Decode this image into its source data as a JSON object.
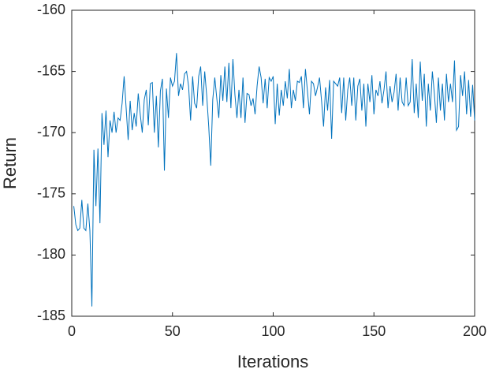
{
  "chart_data": {
    "type": "line",
    "xlabel": "Iterations",
    "ylabel": "Return",
    "xlim": [
      0,
      200
    ],
    "xticks": [
      0,
      50,
      100,
      150,
      200
    ],
    "ylim": [
      -185,
      -160
    ],
    "yticks": [
      -185,
      -180,
      -175,
      -170,
      -165,
      -160
    ],
    "x": [
      1,
      2,
      3,
      4,
      5,
      6,
      7,
      8,
      9,
      10,
      11,
      12,
      13,
      14,
      15,
      16,
      17,
      18,
      19,
      20,
      21,
      22,
      23,
      24,
      25,
      26,
      27,
      28,
      29,
      30,
      31,
      32,
      33,
      34,
      35,
      36,
      37,
      38,
      39,
      40,
      41,
      42,
      43,
      44,
      45,
      46,
      47,
      48,
      49,
      50,
      51,
      52,
      53,
      54,
      55,
      56,
      57,
      58,
      59,
      60,
      61,
      62,
      63,
      64,
      65,
      66,
      67,
      68,
      69,
      70,
      71,
      72,
      73,
      74,
      75,
      76,
      77,
      78,
      79,
      80,
      81,
      82,
      83,
      84,
      85,
      86,
      87,
      88,
      89,
      90,
      91,
      92,
      93,
      94,
      95,
      96,
      97,
      98,
      99,
      100,
      101,
      102,
      103,
      104,
      105,
      106,
      107,
      108,
      109,
      110,
      111,
      112,
      113,
      114,
      115,
      116,
      117,
      118,
      119,
      120,
      121,
      122,
      123,
      124,
      125,
      126,
      127,
      128,
      129,
      130,
      131,
      132,
      133,
      134,
      135,
      136,
      137,
      138,
      139,
      140,
      141,
      142,
      143,
      144,
      145,
      146,
      147,
      148,
      149,
      150,
      151,
      152,
      153,
      154,
      155,
      156,
      157,
      158,
      159,
      160,
      161,
      162,
      163,
      164,
      165,
      166,
      167,
      168,
      169,
      170,
      171,
      172,
      173,
      174,
      175,
      176,
      177,
      178,
      179,
      180,
      181,
      182,
      183,
      184,
      185,
      186,
      187,
      188,
      189,
      190,
      191,
      192,
      193,
      194,
      195,
      196,
      197,
      198,
      199,
      200
    ],
    "series": [
      {
        "color": "#0072bd",
        "values": [
          -176,
          -177.5,
          -178,
          -177.8,
          -175.5,
          -177.8,
          -178,
          -175.8,
          -178,
          -184.2,
          -171.4,
          -176,
          -171.3,
          -177.4,
          -168.4,
          -171,
          -168.2,
          -172,
          -169,
          -170,
          -168.3,
          -170,
          -168.8,
          -169,
          -167.6,
          -165.4,
          -168,
          -170.6,
          -167.4,
          -169.8,
          -168.4,
          -169.5,
          -166.8,
          -168.5,
          -170,
          -167.3,
          -166.5,
          -169.4,
          -166,
          -165.9,
          -170,
          -167,
          -171.2,
          -166.6,
          -165.6,
          -173.1,
          -166.4,
          -168.8,
          -165.5,
          -166.2,
          -165.8,
          -163.5,
          -167,
          -166,
          -166.5,
          -165.2,
          -165,
          -166.2,
          -169,
          -165.4,
          -167.6,
          -168,
          -165.4,
          -164.6,
          -167.8,
          -165,
          -167,
          -169.5,
          -172.7,
          -167.3,
          -165.5,
          -167.2,
          -168.8,
          -165.3,
          -167.4,
          -164.6,
          -167.5,
          -164.3,
          -168,
          -164,
          -166.9,
          -168.8,
          -166.5,
          -168.8,
          -165.5,
          -169.2,
          -166.8,
          -166.9,
          -167.8,
          -167.2,
          -168.5,
          -166.2,
          -164.6,
          -165.5,
          -167.6,
          -165.6,
          -168,
          -165.5,
          -165.8,
          -165.4,
          -169.3,
          -166,
          -168.6,
          -166.5,
          -167.8,
          -165.8,
          -167.2,
          -164.8,
          -168,
          -166.5,
          -167.4,
          -165.8,
          -165.9,
          -165.4,
          -168,
          -164.8,
          -166.6,
          -168.5,
          -165.8,
          -166,
          -167,
          -166.3,
          -165.5,
          -167.4,
          -169.5,
          -166.3,
          -168.2,
          -165.7,
          -170.5,
          -165.8,
          -166,
          -166.2,
          -165.5,
          -168.4,
          -165.5,
          -169,
          -166.5,
          -165.5,
          -167.8,
          -165.5,
          -169,
          -166.2,
          -165.6,
          -168.2,
          -166,
          -169.5,
          -166,
          -167.5,
          -165.3,
          -168.5,
          -166.5,
          -167,
          -165.8,
          -167.6,
          -166.5,
          -165,
          -168,
          -166.2,
          -167.5,
          -166.7,
          -165.2,
          -168.2,
          -165.5,
          -167.5,
          -167.8,
          -165.5,
          -167.8,
          -167.5,
          -164,
          -168.4,
          -166,
          -168.8,
          -164.2,
          -167.4,
          -165.2,
          -169.5,
          -166,
          -168.2,
          -165,
          -166.8,
          -169.2,
          -165.5,
          -168.2,
          -166,
          -169,
          -165.2,
          -167.5,
          -166,
          -167.5,
          -164.1,
          -169.8,
          -169.5,
          -165.3,
          -167,
          -165,
          -168.5,
          -165.7,
          -168.7,
          -166.1,
          -169
        ]
      }
    ]
  }
}
